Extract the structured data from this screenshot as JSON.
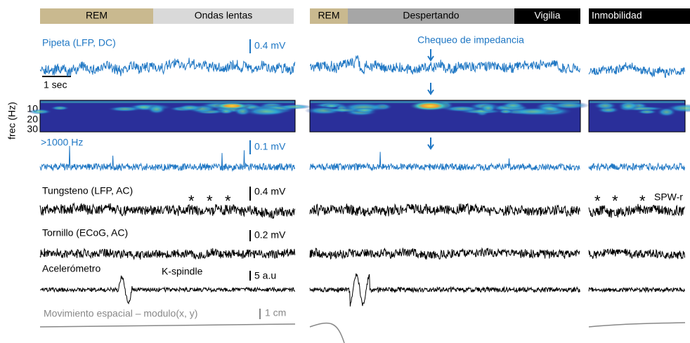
{
  "state_bars": [
    [
      {
        "label": "REM",
        "color": "#c9b98f"
      },
      {
        "label": "Ondas lentas",
        "color": "#d9d9d9"
      }
    ],
    [
      {
        "label": "REM",
        "color": "#c9b98f"
      },
      {
        "label": "Despertando",
        "color": "#a6a6a6"
      },
      {
        "label": "Vigilia",
        "color": "#000000"
      }
    ],
    [
      {
        "label": "Inmobilidad",
        "color": "#000000"
      }
    ]
  ],
  "pipeta": {
    "label": "Pipeta (LFP, DC)",
    "scale": "0.4 mV",
    "time_scale": "1 sec",
    "color": "#1f77c4"
  },
  "impedance_check": "Chequeo de impedancia",
  "spectrogram": {
    "axis_label": "frec (Hz)",
    "yticks": [
      10,
      20,
      30
    ]
  },
  "high_freq": {
    "label": ">1000 Hz",
    "scale": "0.1 mV",
    "color": "#1f77c4"
  },
  "tungsteno": {
    "label": "Tungsteno (LFP, AC)",
    "scale": "0.4 mV",
    "markers": [
      "*",
      "*",
      "*",
      "*",
      "*",
      "*"
    ],
    "event": "SPW-r"
  },
  "tornillo": {
    "label": "Tornillo (ECoG, AC)",
    "scale": "0.2 mV"
  },
  "acelerometro": {
    "label": "Acelerómetro",
    "event": "K-spindle",
    "scale": "5 a.u"
  },
  "movimiento": {
    "label": "Movimiento espacial – modulo(x, y)",
    "scale": "1 cm",
    "color": "#888888"
  }
}
